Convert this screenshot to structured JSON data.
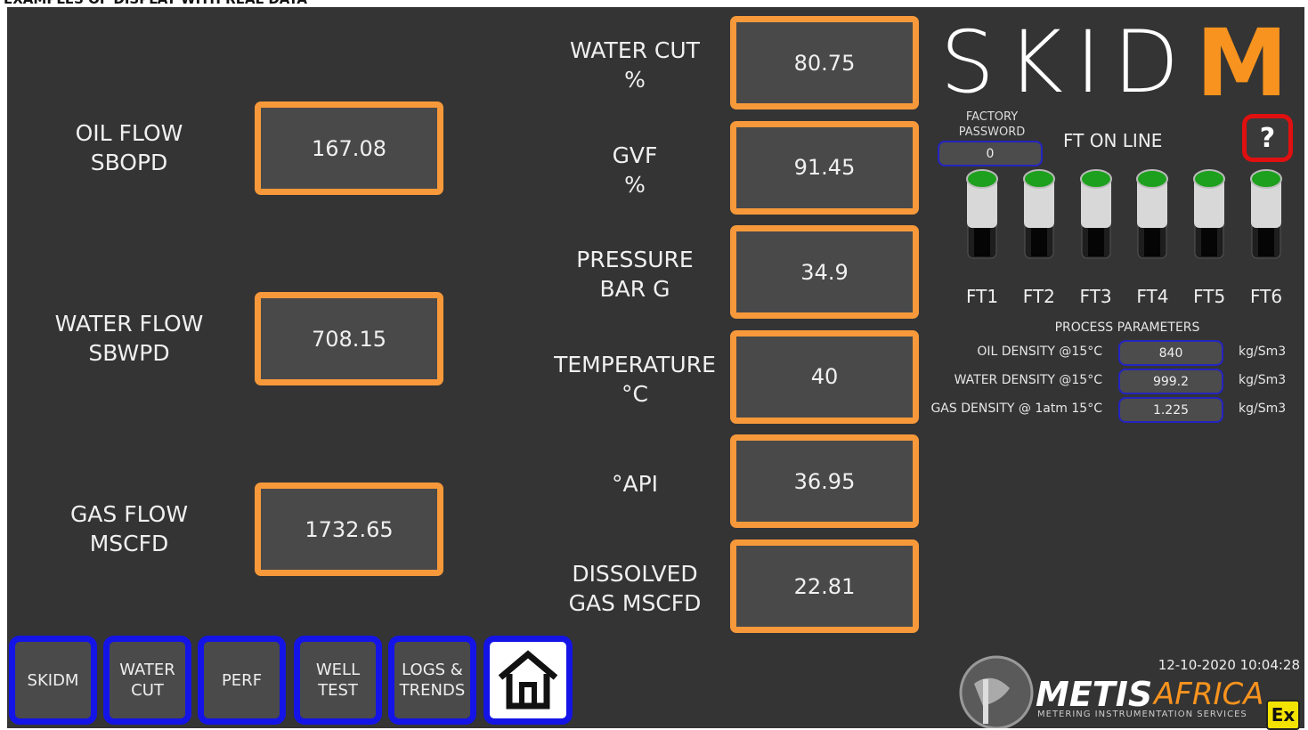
{
  "header": {
    "caption": "EXAMPLES OF DISPLAY WITH REAL DATA"
  },
  "flows": [
    {
      "label": [
        "OIL FLOW",
        "SBOPD"
      ],
      "value": "167.08"
    },
    {
      "label": [
        "WATER FLOW",
        "SBWPD"
      ],
      "value": "708.15"
    },
    {
      "label": [
        "GAS FLOW",
        "MSCFD"
      ],
      "value": "1732.65"
    }
  ],
  "process": [
    {
      "label": [
        "WATER CUT",
        "%"
      ],
      "value": "80.75"
    },
    {
      "label": [
        "GVF",
        "%"
      ],
      "value": "91.45"
    },
    {
      "label": [
        "PRESSURE",
        "BAR G"
      ],
      "value": "34.9"
    },
    {
      "label": [
        "TEMPERATURE",
        "°C"
      ],
      "value": "40"
    },
    {
      "label": [
        "°API"
      ],
      "value": "36.95"
    },
    {
      "label": [
        "DISSOLVED",
        "GAS MSCFD"
      ],
      "value": "22.81"
    }
  ],
  "brand": {
    "logo_text": "SKID",
    "logo_accent": "M"
  },
  "factory_password": {
    "label": [
      "FACTORY",
      "PASSWORD"
    ],
    "value": "0"
  },
  "ft_online": {
    "title": "FT ON LINE",
    "transmitters": [
      "FT1",
      "FT2",
      "FT3",
      "FT4",
      "FT5",
      "FT6"
    ]
  },
  "help": "?",
  "process_parameters": {
    "title": "PROCESS PARAMETERS",
    "rows": [
      {
        "label": "OIL DENSITY @15°C",
        "value": "840",
        "unit": "kg/Sm3"
      },
      {
        "label": "WATER DENSITY @15°C",
        "value": "999.2",
        "unit": "kg/Sm3"
      },
      {
        "label": "GAS DENSITY @ 1atm 15°C",
        "value": "1.225",
        "unit": "kg/Sm3"
      }
    ]
  },
  "nav": [
    [
      "SKIDM"
    ],
    [
      "WATER",
      "CUT"
    ],
    [
      "PERF"
    ],
    [
      "WELL",
      "TEST"
    ],
    [
      "LOGS &",
      "TRENDS"
    ]
  ],
  "timestamp": "12-10-2020 10:04:28",
  "footer_logo": {
    "name_bold": "METIS",
    "name_light": "AFRICA",
    "tagline": "METERING INSTRUMENTATION SERVICES",
    "badge": "Ex"
  }
}
